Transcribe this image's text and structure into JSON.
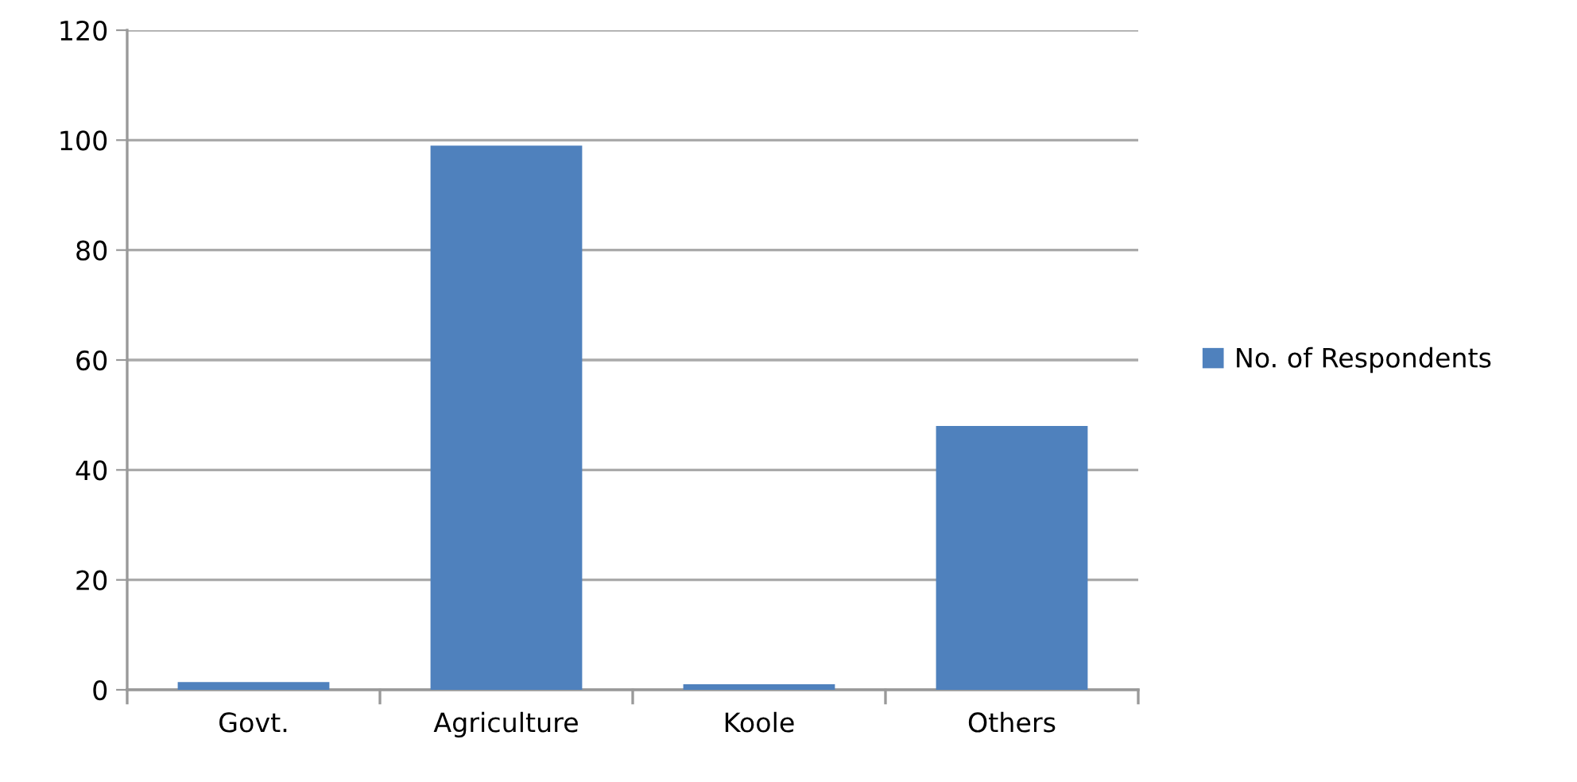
{
  "chart_data": {
    "type": "bar",
    "categories": [
      "Govt.",
      "Agriculture",
      "Koole",
      "Others"
    ],
    "series": [
      {
        "name": "No. of Respondents",
        "color": "#4f81bd",
        "values": [
          1.4,
          99,
          1,
          48
        ]
      }
    ],
    "ylim": [
      0,
      120
    ],
    "yticks": [
      0,
      20,
      40,
      60,
      80,
      100,
      120
    ],
    "grid": "y",
    "legend": "right"
  }
}
